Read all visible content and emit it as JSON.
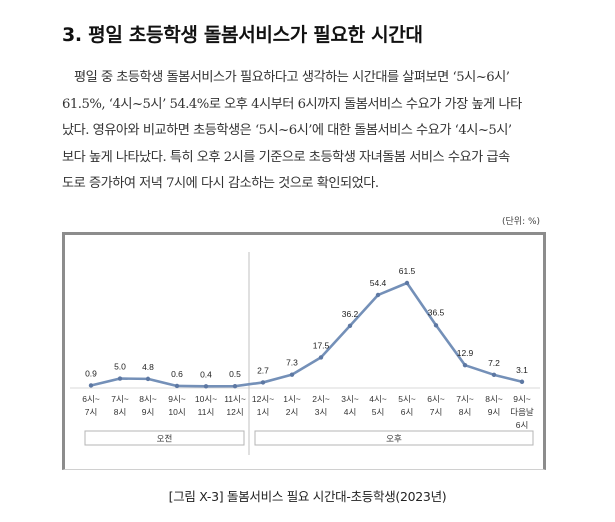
{
  "heading": "3. 평일 초등학생 돌봄서비스가 필요한 시간대",
  "paragraph": {
    "lines": [
      "  평일 중 초등학생 돌봄서비스가 필요하다고 생각하는 시간대를 살펴보면 ‘5시~6시’",
      "61.5%, ‘4시~5시’ 54.4%로 오후 4시부터 6시까지 돌봄서비스 수요가 가장 높게 나타",
      "났다. 영유아와 비교하면 초등학생은 ‘5시~6시’에 대한 돌봄서비스 수요가 ‘4시~5시’",
      "보다 높게 나타났다. 특히 오후 2시를 기준으로 초등학생 자녀돌봄 서비스 수요가 급속",
      "도로 증가하여 저녁 7시에 다시 감소하는 것으로 확인되었다."
    ]
  },
  "unit_label": "(단위: %)",
  "caption": "[그림 X-3] 돌봄서비스 필요 시간대-초등학생(2023년)",
  "chart_data": {
    "type": "line",
    "title": "돌봄서비스 필요 시간대-초등학생(2023년)",
    "unit": "%",
    "xlabel": "",
    "ylabel": "",
    "grid": false,
    "legend": null,
    "categories": [
      [
        "6시~",
        "7시"
      ],
      [
        "7시~",
        "8시"
      ],
      [
        "8시~",
        "9시"
      ],
      [
        "9시~",
        "10시"
      ],
      [
        "10시~",
        "11시"
      ],
      [
        "11시~",
        "12시"
      ],
      [
        "12시~",
        "1시"
      ],
      [
        "1시~",
        "2시"
      ],
      [
        "2시~",
        "3시"
      ],
      [
        "3시~",
        "4시"
      ],
      [
        "4시~",
        "5시"
      ],
      [
        "5시~",
        "6시"
      ],
      [
        "6시~",
        "7시"
      ],
      [
        "7시~",
        "8시"
      ],
      [
        "8시~",
        "9시"
      ],
      [
        "9시~",
        "다음날",
        "6시"
      ]
    ],
    "series": [
      {
        "name": "초등학생",
        "color": "#7490b8",
        "values": [
          0.9,
          5.0,
          4.8,
          0.6,
          0.4,
          0.5,
          2.7,
          7.3,
          17.5,
          36.2,
          54.4,
          61.5,
          36.5,
          12.9,
          7.2,
          3.1
        ],
        "labels": [
          "0.9",
          "5.0",
          "4.8",
          "0.6",
          "0.4",
          "0.5",
          "2.7",
          "7.3",
          "17.5",
          "36.2",
          "54.4",
          "61.5",
          "36.5",
          "12.9",
          "7.2",
          "3.1"
        ]
      }
    ],
    "groups": [
      {
        "label": "오전",
        "from": 0,
        "to": 5
      },
      {
        "label": "오후",
        "from": 6,
        "to": 15
      }
    ],
    "ylim": [
      0,
      65
    ]
  }
}
